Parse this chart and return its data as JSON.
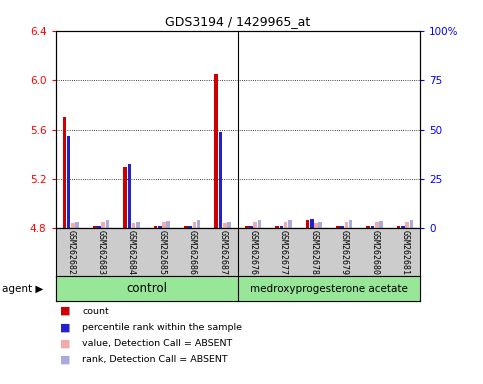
{
  "title": "GDS3194 / 1429965_at",
  "samples": [
    "GSM262682",
    "GSM262683",
    "GSM262684",
    "GSM262685",
    "GSM262686",
    "GSM262687",
    "GSM262676",
    "GSM262677",
    "GSM262678",
    "GSM262679",
    "GSM262680",
    "GSM262681"
  ],
  "red_bars": [
    5.7,
    4.82,
    5.3,
    4.82,
    4.82,
    6.05,
    4.82,
    4.82,
    4.87,
    4.82,
    4.82,
    4.82
  ],
  "blue_bars": [
    5.55,
    4.82,
    5.32,
    4.82,
    4.82,
    5.58,
    4.82,
    4.82,
    4.88,
    4.82,
    4.82,
    4.82
  ],
  "pink_bars": [
    4.845,
    4.855,
    4.845,
    4.85,
    4.855,
    4.845,
    4.855,
    4.855,
    4.845,
    4.855,
    4.85,
    4.855
  ],
  "lavender_bars": [
    4.855,
    4.865,
    4.855,
    4.86,
    4.865,
    4.855,
    4.865,
    4.865,
    4.855,
    4.865,
    4.86,
    4.865
  ],
  "ymin": 4.8,
  "ymax": 6.4,
  "yticks_left": [
    4.8,
    5.2,
    5.6,
    6.0,
    6.4
  ],
  "yticks_right_labels": [
    "0",
    "25",
    "50",
    "75",
    "100%"
  ],
  "yticks_right_vals": [
    4.8,
    5.2,
    5.6,
    6.0,
    6.4
  ],
  "n_control": 6,
  "n_treat": 6,
  "group_label_control": "control",
  "group_label_treat": "medroxyprogesterone acetate",
  "green_color": "#98E698",
  "red_color": "#CC0000",
  "blue_color": "#2222CC",
  "pink_color": "#F4AAAA",
  "lavender_color": "#AAAADD",
  "gray_color": "#CCCCCC",
  "bar_width": 0.12,
  "bar_gap": 0.02,
  "legend_items": [
    "count",
    "percentile rank within the sample",
    "value, Detection Call = ABSENT",
    "rank, Detection Call = ABSENT"
  ],
  "legend_colors": [
    "#CC0000",
    "#2222CC",
    "#F4AAAA",
    "#AAAADD"
  ]
}
